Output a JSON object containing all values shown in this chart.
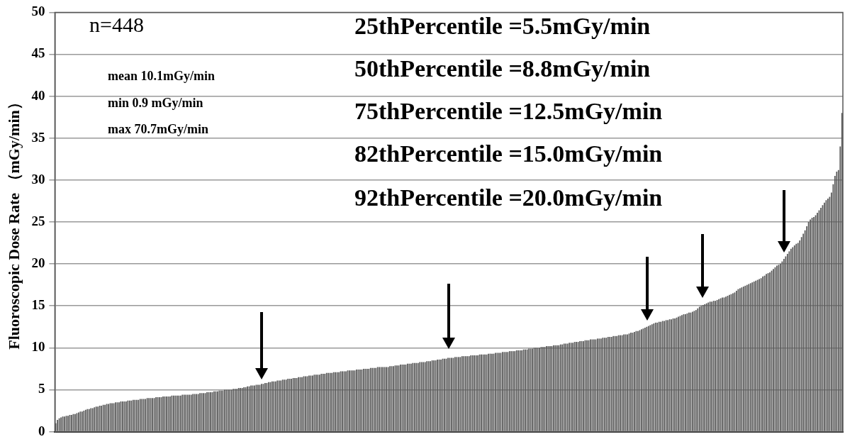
{
  "chart_data": {
    "type": "bar",
    "ylabel": "Fluoroscopic Dose Rate （mGy/min）",
    "color": "#595959",
    "ylim": [
      0,
      50
    ],
    "yticks": [
      0,
      5,
      10,
      15,
      20,
      25,
      30,
      35,
      40,
      45,
      50
    ],
    "grid": "y",
    "legend": false,
    "tick_labels": "y",
    "annotations": [
      "n=448",
      "mean 10.1mGy/min",
      "min 0.9 mGy/min",
      "max 70.7mGy/min",
      "25thPercentile =5.5mGy/min",
      "50thPercentile =8.8mGy/min",
      "75thPercentile =12.5mGy/min",
      "82thPercentile =15.0mGy/min",
      "92thPercentile =20.0mGy/min"
    ],
    "categories": [
      null,
      null,
      null,
      null,
      null,
      null,
      null,
      null,
      null,
      null,
      null,
      null,
      null,
      null,
      null,
      null,
      null,
      null,
      null,
      null,
      null,
      null,
      null,
      null,
      null,
      null,
      null,
      null,
      null,
      null,
      null,
      null,
      null,
      null,
      null,
      null,
      null,
      null,
      null,
      null,
      null,
      null,
      null,
      null,
      null,
      null,
      null,
      null,
      null,
      null,
      null,
      null,
      null,
      null,
      null,
      null,
      null,
      null,
      null,
      null,
      null,
      null,
      null,
      null,
      null,
      null,
      null,
      null,
      null,
      null,
      null,
      null,
      null,
      null,
      null,
      null,
      null,
      null,
      null,
      null,
      null,
      null,
      null,
      null,
      null,
      null,
      null,
      null,
      null,
      null,
      null,
      null,
      null,
      null,
      null,
      null,
      null,
      null,
      null,
      null,
      null,
      null,
      null,
      null,
      null,
      null,
      null,
      null,
      null,
      null,
      null,
      null,
      null,
      null,
      null,
      null,
      null,
      null,
      null,
      null,
      null,
      null,
      null,
      null,
      null,
      null,
      null,
      null,
      null,
      null,
      null,
      null,
      null,
      null,
      null,
      null,
      null,
      null,
      null,
      null,
      null,
      null,
      null,
      null,
      null,
      null,
      null,
      null,
      null,
      null,
      null,
      null,
      null,
      null,
      null,
      null,
      null,
      null,
      null,
      null,
      null,
      null,
      null,
      null,
      null,
      null,
      null,
      null,
      null,
      null,
      null,
      null,
      null,
      null,
      null,
      null,
      null,
      null,
      null,
      null,
      null,
      null,
      null,
      null,
      null,
      null,
      null,
      null,
      null,
      null,
      null,
      null,
      null,
      null,
      null,
      null,
      null,
      null,
      null,
      null,
      null,
      null,
      null,
      null,
      null,
      null,
      null,
      null,
      null,
      null,
      null,
      null,
      null,
      null,
      null,
      null,
      null,
      null,
      null,
      null,
      null,
      null,
      null,
      null,
      null,
      null,
      null,
      null,
      null,
      null,
      null,
      null,
      null,
      null,
      null,
      null,
      null,
      null,
      null,
      null,
      null,
      null,
      null,
      null,
      null,
      null,
      null,
      null,
      null,
      null,
      null,
      null,
      null,
      null,
      null,
      null,
      null,
      null,
      null,
      null,
      null,
      null,
      null,
      null,
      null,
      null,
      null,
      null,
      null,
      null,
      null,
      null,
      null,
      null,
      null,
      null,
      null,
      null,
      null,
      null,
      null,
      null,
      null,
      null,
      null,
      null,
      null,
      null,
      null,
      null,
      null,
      null,
      null,
      null,
      null,
      null,
      null,
      null,
      null,
      null,
      null,
      null,
      null,
      null,
      null,
      null,
      null,
      null,
      null,
      null,
      null,
      null,
      null,
      null,
      null,
      null,
      null,
      null,
      null,
      null,
      null,
      null,
      null,
      null,
      null,
      null,
      null,
      null,
      null,
      null,
      null,
      null,
      null,
      null,
      null,
      null,
      null,
      null,
      null,
      null,
      null,
      null,
      null,
      null,
      null,
      null,
      null,
      null,
      null,
      null,
      null,
      null,
      null,
      null,
      null,
      null,
      null,
      null,
      null,
      null,
      null,
      null,
      null,
      null,
      null,
      null,
      null,
      null,
      null,
      null,
      null,
      null,
      null,
      null,
      null,
      null,
      null,
      null,
      null,
      null,
      null,
      null,
      null,
      null,
      null,
      null,
      null,
      null,
      null,
      null,
      null,
      null,
      null,
      null,
      null,
      null,
      null,
      null,
      null,
      null,
      null,
      null,
      null,
      null,
      null,
      null,
      null,
      null,
      null,
      null,
      null,
      null,
      null,
      null,
      null,
      null,
      null,
      null,
      null,
      null,
      null,
      null,
      null,
      null,
      null,
      null,
      null,
      null,
      null,
      null,
      null,
      null,
      null,
      null,
      null,
      null,
      null,
      null,
      null,
      null,
      null,
      null,
      null,
      null,
      null,
      null,
      null,
      null
    ],
    "values": [
      1.0,
      1.4,
      1.6,
      1.7,
      1.8,
      1.8,
      1.9,
      1.9,
      2.0,
      2.0,
      2.1,
      2.1,
      2.2,
      2.3,
      2.4,
      2.4,
      2.5,
      2.6,
      2.7,
      2.7,
      2.8,
      2.8,
      2.9,
      3.0,
      3.0,
      3.1,
      3.1,
      3.2,
      3.2,
      3.3,
      3.3,
      3.4,
      3.4,
      3.4,
      3.5,
      3.5,
      3.5,
      3.6,
      3.6,
      3.6,
      3.6,
      3.7,
      3.7,
      3.7,
      3.8,
      3.8,
      3.8,
      3.8,
      3.9,
      3.9,
      3.9,
      3.9,
      4.0,
      4.0,
      4.0,
      4.0,
      4.0,
      4.1,
      4.1,
      4.1,
      4.1,
      4.2,
      4.2,
      4.2,
      4.2,
      4.2,
      4.3,
      4.3,
      4.3,
      4.3,
      4.3,
      4.3,
      4.4,
      4.4,
      4.4,
      4.4,
      4.4,
      4.4,
      4.5,
      4.5,
      4.5,
      4.5,
      4.6,
      4.6,
      4.6,
      4.6,
      4.7,
      4.7,
      4.7,
      4.7,
      4.8,
      4.8,
      4.8,
      4.9,
      4.9,
      4.9,
      5.0,
      5.0,
      5.0,
      5.0,
      5.0,
      5.1,
      5.1,
      5.1,
      5.2,
      5.2,
      5.2,
      5.3,
      5.3,
      5.4,
      5.4,
      5.5,
      5.5,
      5.5,
      5.6,
      5.6,
      5.6,
      5.7,
      5.7,
      5.8,
      5.8,
      5.9,
      5.9,
      6.0,
      6.0,
      6.0,
      6.1,
      6.1,
      6.1,
      6.2,
      6.2,
      6.2,
      6.3,
      6.3,
      6.3,
      6.4,
      6.4,
      6.4,
      6.5,
      6.5,
      6.5,
      6.6,
      6.6,
      6.6,
      6.7,
      6.7,
      6.7,
      6.8,
      6.8,
      6.8,
      6.8,
      6.9,
      6.9,
      6.9,
      7.0,
      7.0,
      7.0,
      7.0,
      7.1,
      7.1,
      7.1,
      7.1,
      7.2,
      7.2,
      7.2,
      7.2,
      7.3,
      7.3,
      7.3,
      7.3,
      7.3,
      7.4,
      7.4,
      7.4,
      7.4,
      7.5,
      7.5,
      7.5,
      7.5,
      7.6,
      7.6,
      7.6,
      7.6,
      7.7,
      7.7,
      7.7,
      7.7,
      7.7,
      7.7,
      7.7,
      7.8,
      7.8,
      7.8,
      7.9,
      7.9,
      7.9,
      8.0,
      8.0,
      8.0,
      8.0,
      8.1,
      8.1,
      8.1,
      8.2,
      8.2,
      8.2,
      8.2,
      8.3,
      8.3,
      8.3,
      8.3,
      8.4,
      8.4,
      8.4,
      8.5,
      8.5,
      8.5,
      8.6,
      8.6,
      8.6,
      8.7,
      8.7,
      8.7,
      8.8,
      8.8,
      8.8,
      8.8,
      8.9,
      8.9,
      8.9,
      8.9,
      9.0,
      9.0,
      9.0,
      9.0,
      9.0,
      9.1,
      9.1,
      9.1,
      9.1,
      9.1,
      9.2,
      9.2,
      9.2,
      9.2,
      9.2,
      9.3,
      9.3,
      9.3,
      9.3,
      9.4,
      9.4,
      9.4,
      9.4,
      9.5,
      9.5,
      9.5,
      9.5,
      9.6,
      9.6,
      9.6,
      9.6,
      9.7,
      9.7,
      9.7,
      9.7,
      9.8,
      9.8,
      9.8,
      9.9,
      9.9,
      9.9,
      10.0,
      10.0,
      10.0,
      10.0,
      10.1,
      10.1,
      10.1,
      10.2,
      10.2,
      10.2,
      10.2,
      10.3,
      10.3,
      10.3,
      10.3,
      10.4,
      10.4,
      10.5,
      10.5,
      10.5,
      10.6,
      10.6,
      10.6,
      10.7,
      10.7,
      10.7,
      10.8,
      10.8,
      10.8,
      10.9,
      10.9,
      10.9,
      11.0,
      11.0,
      11.0,
      11.0,
      11.1,
      11.1,
      11.1,
      11.2,
      11.2,
      11.2,
      11.3,
      11.3,
      11.3,
      11.4,
      11.4,
      11.4,
      11.5,
      11.5,
      11.5,
      11.6,
      11.6,
      11.6,
      11.7,
      11.8,
      11.8,
      11.9,
      12.0,
      12.0,
      12.1,
      12.2,
      12.3,
      12.4,
      12.5,
      12.6,
      12.7,
      12.8,
      12.9,
      13.0,
      13.0,
      13.1,
      13.1,
      13.2,
      13.2,
      13.3,
      13.3,
      13.4,
      13.4,
      13.5,
      13.5,
      13.6,
      13.7,
      13.8,
      13.9,
      14.0,
      14.0,
      14.1,
      14.2,
      14.2,
      14.3,
      14.4,
      14.5,
      14.7,
      14.9,
      15.0,
      15.1,
      15.2,
      15.3,
      15.4,
      15.5,
      15.5,
      15.6,
      15.6,
      15.7,
      15.8,
      15.9,
      16.0,
      16.0,
      16.1,
      16.2,
      16.3,
      16.4,
      16.5,
      16.6,
      16.8,
      17.0,
      17.1,
      17.2,
      17.3,
      17.4,
      17.5,
      17.6,
      17.7,
      17.8,
      17.9,
      18.0,
      18.1,
      18.2,
      18.3,
      18.5,
      18.6,
      18.8,
      18.9,
      19.0,
      19.2,
      19.4,
      19.6,
      19.8,
      19.9,
      20.0,
      20.3,
      20.6,
      20.9,
      21.2,
      21.5,
      21.8,
      22.0,
      22.2,
      22.4,
      22.5,
      22.8,
      23.2,
      23.6,
      24.0,
      24.5,
      25.0,
      25.3,
      25.5,
      25.6,
      25.8,
      26.1,
      26.4,
      26.7,
      27.0,
      27.3,
      27.6,
      27.8,
      28.0,
      28.5,
      29.5,
      30.5,
      31.0,
      31.2,
      34.0,
      38.0
    ]
  }
}
